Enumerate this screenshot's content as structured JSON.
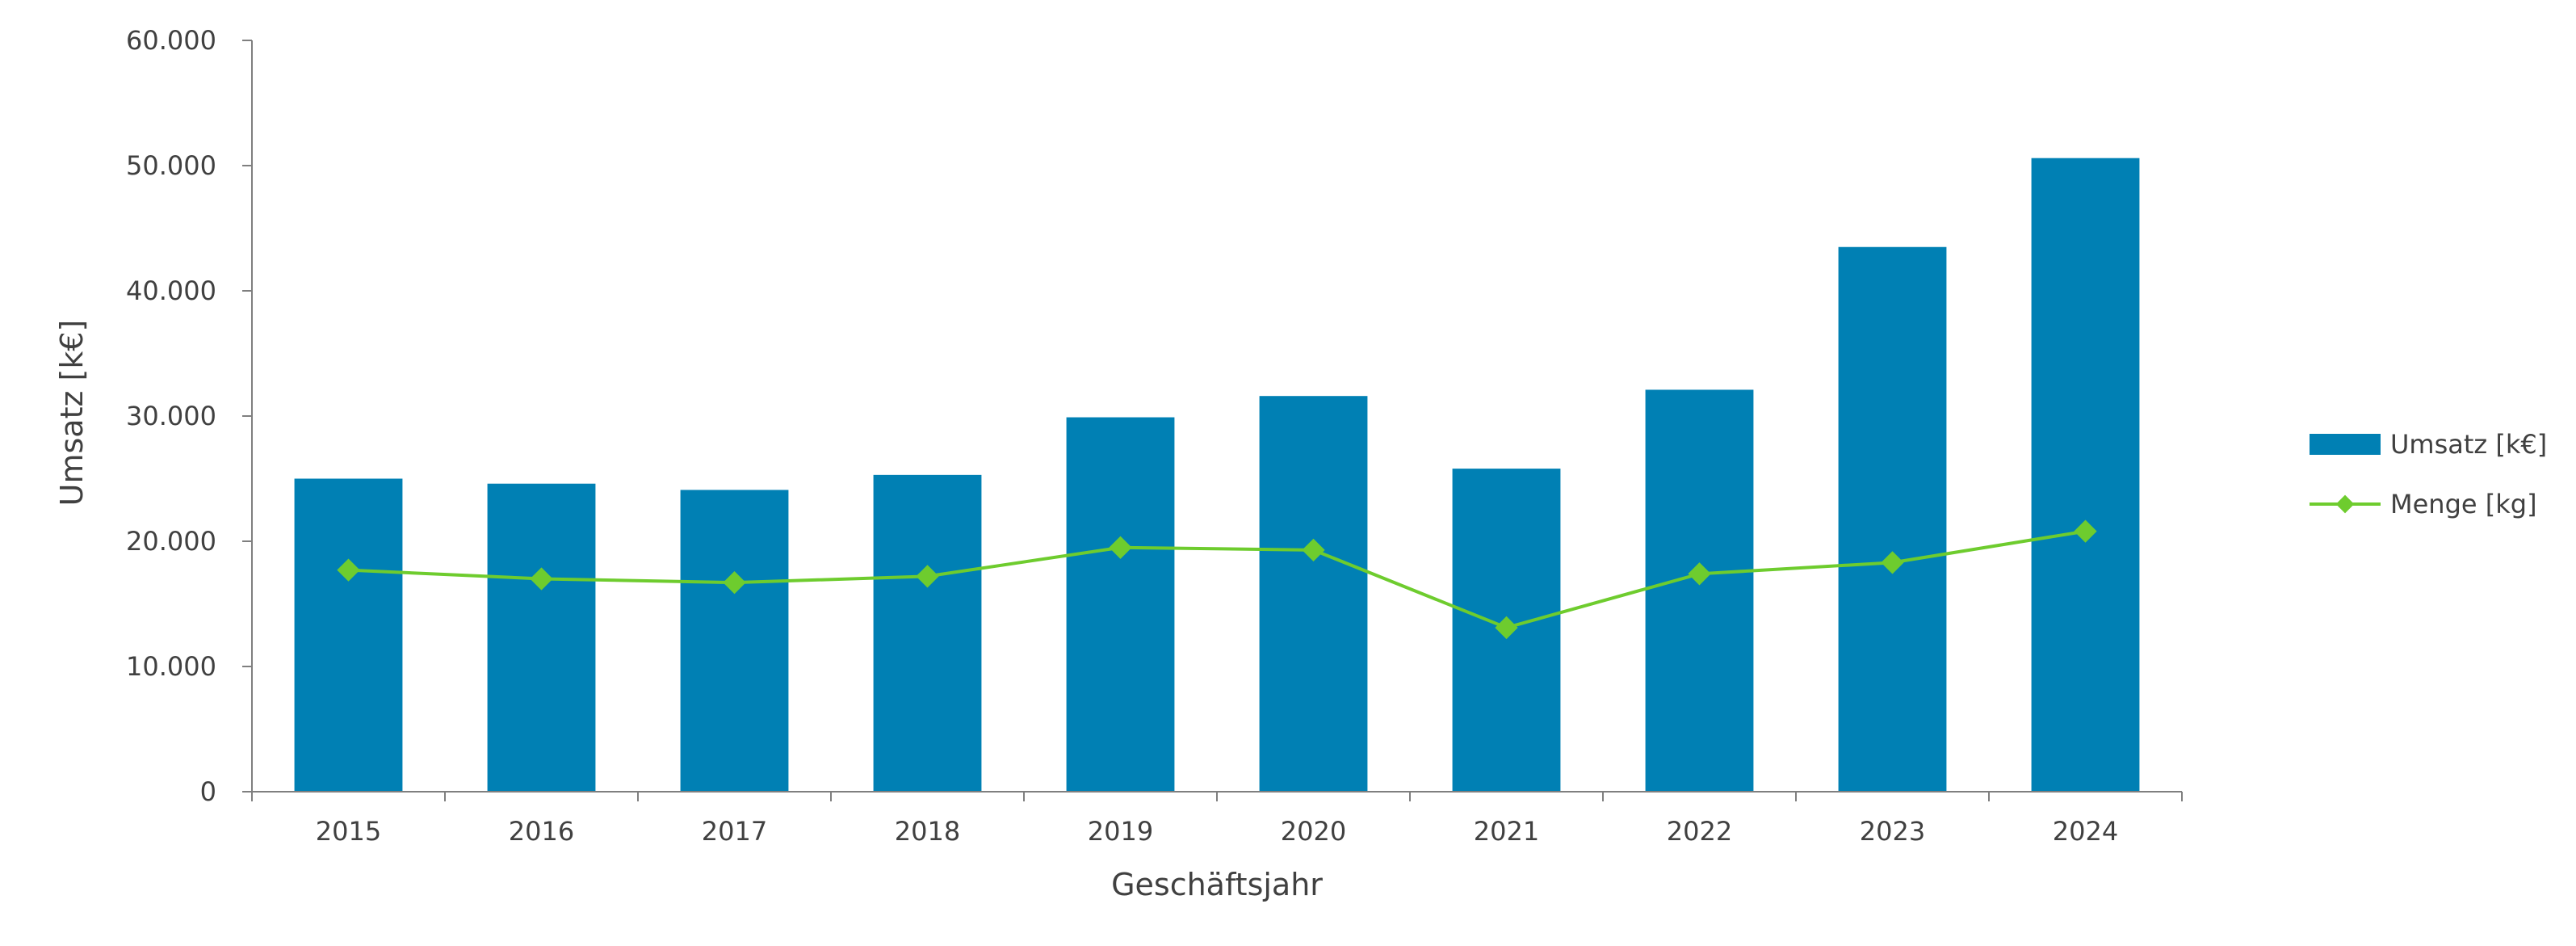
{
  "chart_data": {
    "type": "bar",
    "title": "",
    "categories": [
      "2015",
      "2016",
      "2017",
      "2018",
      "2019",
      "2020",
      "2021",
      "2022",
      "2023",
      "2024"
    ],
    "series": [
      {
        "name": "Umsatz [k€]",
        "type": "bar",
        "color": "#0080B4",
        "values": [
          25000,
          24600,
          24100,
          25300,
          29900,
          31600,
          25800,
          32100,
          43500,
          50600
        ]
      },
      {
        "name": "Menge [kg]",
        "type": "line",
        "marker": "diamond",
        "color": "#6ECC2E",
        "values": [
          17700,
          17000,
          16700,
          17200,
          19500,
          19300,
          13100,
          17400,
          18300,
          20800
        ]
      }
    ],
    "xlabel": "Geschäftsjahr",
    "ylabel": "Umsatz [k€]",
    "ylim": [
      0,
      60000
    ],
    "yticks": [
      "0",
      "10.000",
      "20.000",
      "30.000",
      "40.000",
      "50.000",
      "60.000"
    ],
    "legend_position": "right",
    "grid": false
  }
}
